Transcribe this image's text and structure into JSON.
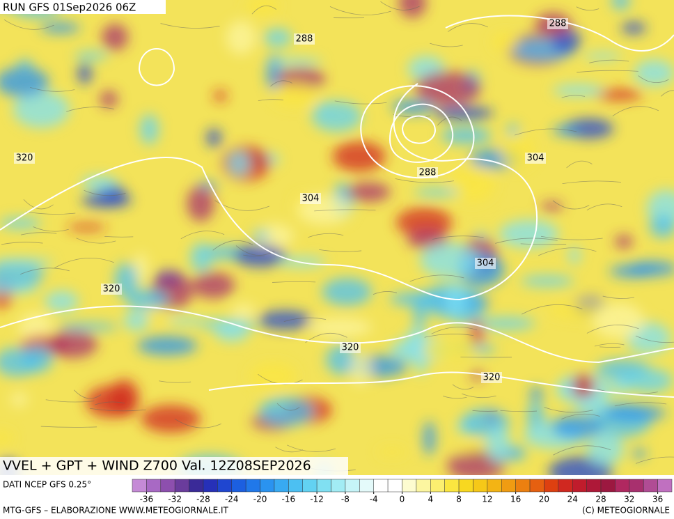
{
  "header": {
    "run": "RUN GFS 01Sep2026 06Z"
  },
  "contour_labels": [
    "288",
    "288",
    "288",
    "304",
    "304",
    "304",
    "320",
    "320",
    "320",
    "320"
  ],
  "footer": {
    "title": "VVEL + GPT + WIND Z700 Val. 12Z08SEP2026",
    "source": "DATI NCEP GFS 0.25°",
    "credit": "MTG-GFS – ELABORAZIONE WWW.METEOGIORNALE.IT",
    "copyright": "(C) METEOGIORNALE"
  },
  "colorbar": {
    "range": [
      -38,
      38
    ],
    "ticks": [
      -36,
      -32,
      -28,
      -24,
      -20,
      -16,
      -12,
      -8,
      -4,
      0,
      4,
      8,
      12,
      16,
      20,
      24,
      28,
      32,
      36
    ],
    "colors": [
      "#c58ad6",
      "#a869c4",
      "#8d4fae",
      "#6a3c9c",
      "#3a2a98",
      "#2630b8",
      "#1f46d0",
      "#1c5fe0",
      "#2078ea",
      "#2a93f0",
      "#38aaf2",
      "#4cc0f2",
      "#62d2f2",
      "#80e0f2",
      "#a2ecf4",
      "#c6f4f8",
      "#e4fafa",
      "#ffffff",
      "#ffffff",
      "#fdfcd0",
      "#fcf6a0",
      "#fcef70",
      "#fbe640",
      "#f8d820",
      "#f6c818",
      "#f3b414",
      "#f09c12",
      "#ec8010",
      "#e66010",
      "#de4010",
      "#d02820",
      "#c01c2c",
      "#ae1838",
      "#9c1840",
      "#b02860",
      "#a8306e",
      "#b04c94",
      "#c070c0"
    ]
  }
}
